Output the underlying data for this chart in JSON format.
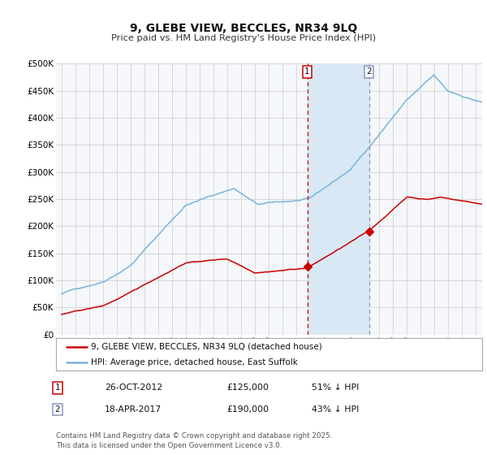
{
  "title": "9, GLEBE VIEW, BECCLES, NR34 9LQ",
  "subtitle": "Price paid vs. HM Land Registry's House Price Index (HPI)",
  "legend_red": "9, GLEBE VIEW, BECCLES, NR34 9LQ (detached house)",
  "legend_blue": "HPI: Average price, detached house, East Suffolk",
  "footnote": "Contains HM Land Registry data © Crown copyright and database right 2025.\nThis data is licensed under the Open Government Licence v3.0.",
  "sale1_date": "26-OCT-2012",
  "sale1_price": 125000,
  "sale1_label": "£125,000",
  "sale1_hpi_pct": "51% ↓ HPI",
  "sale2_date": "18-APR-2017",
  "sale2_price": 190000,
  "sale2_label": "£190,000",
  "sale2_hpi_pct": "43% ↓ HPI",
  "ylim": [
    0,
    500000
  ],
  "yticks": [
    0,
    50000,
    100000,
    150000,
    200000,
    250000,
    300000,
    350000,
    400000,
    450000,
    500000
  ],
  "red_color": "#cc0000",
  "blue_color": "#7ab4d8",
  "sale1_x": 2012.82,
  "sale2_x": 2017.29,
  "shade_color": "#d8e8f5",
  "vline1_color": "#cc0000",
  "vline2_color": "#8899bb",
  "label_box1_edge": "#cc0000",
  "label_box2_edge": "#8899bb",
  "grid_color": "#cccccc",
  "plot_bg": "#f5f7fa",
  "xlim_left": 1994.6,
  "xlim_right": 2025.5
}
